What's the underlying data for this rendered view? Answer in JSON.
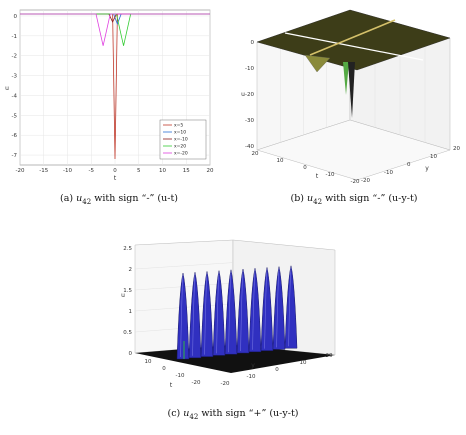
{
  "captions": {
    "a": {
      "tag": "(a)",
      "var": "u",
      "sub": "42",
      "text": "with sign “-” (u-t)"
    },
    "b": {
      "tag": "(b)",
      "var": "u",
      "sub": "42",
      "text": "with sign “-” (u-y-t)"
    },
    "c": {
      "tag": "(c)",
      "var": "u",
      "sub": "42",
      "text": "with sign “+” (u-y-t)"
    }
  },
  "colors": {
    "x5": "#c0392b",
    "x10": "#2a6fd6",
    "xm10": "#8a1a1a",
    "x20": "#33cc33",
    "xm20": "#e040e0",
    "surface_dark": "#3a3a1a",
    "surface_olive": "#8a8a3a",
    "peaks_blue": "#3030c0"
  },
  "chart_data": [
    {
      "type": "line",
      "xlabel": "t",
      "ylabel": "u",
      "xlim": [
        -20,
        20
      ],
      "ylim": [
        -7.5,
        0.3
      ],
      "x_ticks": [
        "-20",
        "-15",
        "-10",
        "-5",
        "0",
        "5",
        "10",
        "15",
        "20"
      ],
      "y_ticks": [
        "0",
        "-1",
        "-2",
        "-3",
        "-4",
        "-5",
        "-6",
        "-7"
      ],
      "legend": "bottom-right",
      "series": [
        {
          "name": "x=5",
          "dip_center": 0.0,
          "dip_depth": -7.2,
          "dip_width": 0.5
        },
        {
          "name": "x=10",
          "dip_center": 0.5,
          "dip_depth": -0.4,
          "dip_width": 0.8
        },
        {
          "name": "x=-10",
          "dip_center": -0.5,
          "dip_depth": -0.3,
          "dip_width": 0.8
        },
        {
          "name": "x=20",
          "dip_center": 1.8,
          "dip_depth": -1.5,
          "dip_width": 1.5
        },
        {
          "name": "x=-20",
          "dip_center": -2.5,
          "dip_depth": -1.5,
          "dip_width": 1.5
        }
      ]
    },
    {
      "type": "surface",
      "xlabel": "t",
      "ylabel": "y",
      "zlabel": "u",
      "x_ticks": [
        "20",
        "10",
        "0",
        "-10",
        "-20"
      ],
      "y_ticks": [
        "-20",
        "-10",
        "0",
        "10",
        "20"
      ],
      "z_ticks": [
        "0",
        "-10",
        "-20",
        "-30",
        "-40"
      ]
    },
    {
      "type": "surface",
      "xlabel": "t",
      "ylabel": "y",
      "zlabel": "u",
      "x_ticks": [
        "10",
        "0",
        "-10",
        "-20"
      ],
      "y_ticks": [
        "-20",
        "-10",
        "0",
        "10",
        "20"
      ],
      "z_ticks": [
        "0",
        "0.5",
        "1",
        "1.5",
        "2",
        "2.5"
      ]
    }
  ]
}
